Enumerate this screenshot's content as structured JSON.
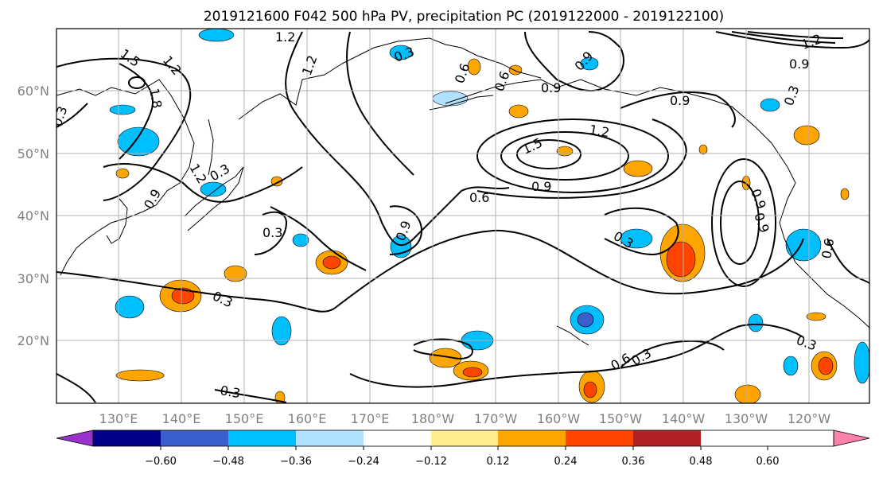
{
  "title": "2019121600 F042 500 hPa PV, precipitation PC (2019122000 - 2019122100)",
  "map": {
    "lon_labels": [
      "130°E",
      "140°E",
      "150°E",
      "160°E",
      "170°E",
      "180°W",
      "170°W",
      "160°W",
      "150°W",
      "140°W",
      "130°W",
      "120°W"
    ],
    "lat_labels": [
      "60°N",
      "50°N",
      "40°N",
      "30°N",
      "20°N"
    ],
    "contour_labels": [
      {
        "text": "1.5"
      },
      {
        "text": "1.2"
      },
      {
        "text": "1.2"
      },
      {
        "text": "1.2"
      },
      {
        "text": "1.8"
      },
      {
        "text": "1.2"
      },
      {
        "text": "0.3"
      },
      {
        "text": "0.6"
      },
      {
        "text": "0.9"
      },
      {
        "text": "0.9"
      },
      {
        "text": "0.9"
      },
      {
        "text": "1.5"
      },
      {
        "text": "1.2"
      },
      {
        "text": "0.9"
      },
      {
        "text": "0.6"
      },
      {
        "text": "0.9"
      },
      {
        "text": "0.3"
      },
      {
        "text": "0.3"
      },
      {
        "text": "0.9"
      },
      {
        "text": "0.3"
      },
      {
        "text": "0.3"
      },
      {
        "text": "0.6"
      },
      {
        "text": "0.9"
      },
      {
        "text": "0.3"
      },
      {
        "text": "0.6"
      },
      {
        "text": "0.3"
      },
      {
        "text": "0.3"
      },
      {
        "text": "1.2"
      },
      {
        "text": "0.9"
      },
      {
        "text": "0.3"
      },
      {
        "text": "0.3"
      },
      {
        "text": "0.6"
      },
      {
        "text": "0.9"
      }
    ]
  },
  "colorbar": {
    "colors": [
      "#9932cc",
      "#00008b",
      "#3a5fcd",
      "#00bfff",
      "#b0e2ff",
      "#ffffff",
      "#ffec8b",
      "#ffa500",
      "#ff4500",
      "#b22222",
      "#ff82ab"
    ],
    "tick_labels": [
      "−0.60",
      "−0.48",
      "−0.36",
      "−0.24",
      "−0.12",
      "0.12",
      "0.24",
      "0.36",
      "0.48",
      "0.60"
    ]
  },
  "palette": {
    "neg_light": "#b0e2ff",
    "neg": "#00bfff",
    "neg_strong": "#3a5fcd",
    "pos_light": "#ffec8b",
    "pos": "#ffa500",
    "pos_strong": "#ff4500"
  }
}
